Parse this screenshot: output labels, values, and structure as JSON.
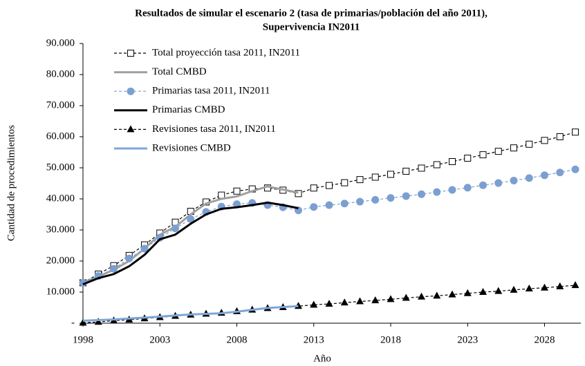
{
  "chart_data": {
    "type": "line",
    "title": [
      "Resultados de simular el escenario 2 (tasa de primarias/población del año 2011),",
      "Supervivencia IN2011"
    ],
    "x_label": "Año",
    "y_label": "Cantidad de procedimientos",
    "x": [
      1998,
      1999,
      2000,
      2001,
      2002,
      2003,
      2004,
      2005,
      2006,
      2007,
      2008,
      2009,
      2010,
      2011,
      2012,
      2013,
      2014,
      2015,
      2016,
      2017,
      2018,
      2019,
      2020,
      2021,
      2022,
      2023,
      2024,
      2025,
      2026,
      2027,
      2028,
      2029,
      2030
    ],
    "xlim": [
      1998,
      2030
    ],
    "xticks": [
      1998,
      2003,
      2008,
      2013,
      2018,
      2023,
      2028
    ],
    "ylim": [
      0,
      90000
    ],
    "yticks": [
      {
        "value": 0,
        "label": "-"
      },
      {
        "value": 10000,
        "label": "10.000"
      },
      {
        "value": 20000,
        "label": "20.000"
      },
      {
        "value": 30000,
        "label": "30.000"
      },
      {
        "value": 40000,
        "label": "40.000"
      },
      {
        "value": 50000,
        "label": "50.000"
      },
      {
        "value": 60000,
        "label": "60.000"
      },
      {
        "value": 70000,
        "label": "70.000"
      },
      {
        "value": 80000,
        "label": "80.000"
      },
      {
        "value": 90000,
        "label": "90.000"
      }
    ],
    "legend": "upper left",
    "series": [
      {
        "name": "Total proyección tasa 2011, IN2011",
        "color": "#000000",
        "dashed": true,
        "marker": "square",
        "values": [
          13000,
          15800,
          18500,
          21800,
          25200,
          29000,
          32500,
          36000,
          39000,
          41200,
          42500,
          43200,
          43500,
          42800,
          41700,
          43500,
          44300,
          45200,
          46200,
          47000,
          47900,
          48900,
          49900,
          51000,
          52000,
          53100,
          54200,
          55300,
          56400,
          57600,
          58800,
          60000,
          61500
        ]
      },
      {
        "name": "Total CMBD",
        "color": "#a0a0a0",
        "dashed": false,
        "marker": "none",
        "values": [
          13000,
          15000,
          17200,
          20000,
          24000,
          28500,
          31000,
          35000,
          38500,
          40000,
          40800,
          42500,
          44000,
          43000,
          42000,
          null,
          null,
          null,
          null,
          null,
          null,
          null,
          null,
          null,
          null,
          null,
          null,
          null,
          null,
          null,
          null,
          null,
          null
        ]
      },
      {
        "name": "Primarias tasa 2011, IN2011",
        "color": "#7b9fd1",
        "dashed": true,
        "marker": "circle",
        "values": [
          13000,
          15200,
          17500,
          20800,
          24000,
          27500,
          30500,
          33500,
          35800,
          37500,
          38300,
          38700,
          38000,
          37300,
          36300,
          37400,
          38000,
          38500,
          39100,
          39700,
          40300,
          40900,
          41500,
          42200,
          42900,
          43600,
          44400,
          45100,
          45900,
          46700,
          47600,
          48500,
          49500
        ]
      },
      {
        "name": "Primarias CMBD",
        "color": "#000000",
        "dashed": false,
        "marker": "none",
        "values": [
          12500,
          14500,
          15800,
          18300,
          22000,
          27000,
          28500,
          32000,
          35000,
          36800,
          37300,
          38000,
          38800,
          38000,
          37000,
          null,
          null,
          null,
          null,
          null,
          null,
          null,
          null,
          null,
          null,
          null,
          null,
          null,
          null,
          null,
          null,
          null,
          null
        ]
      },
      {
        "name": "Revisiones tasa 2011, IN2011",
        "color": "#000000",
        "dashed": true,
        "marker": "triangle",
        "values": [
          100,
          400,
          800,
          1100,
          1500,
          1900,
          2300,
          2700,
          3000,
          3300,
          3800,
          4300,
          4800,
          5100,
          5500,
          5900,
          6200,
          6600,
          7000,
          7300,
          7700,
          8100,
          8500,
          8800,
          9200,
          9600,
          10000,
          10300,
          10700,
          11100,
          11400,
          11800,
          12200
        ]
      },
      {
        "name": "Revisiones CMBD",
        "color": "#7fa6d6",
        "dashed": false,
        "marker": "none",
        "values": [
          800,
          1000,
          1200,
          1500,
          1800,
          2100,
          2500,
          2800,
          3000,
          3200,
          3700,
          4300,
          4900,
          5200,
          5500,
          null,
          null,
          null,
          null,
          null,
          null,
          null,
          null,
          null,
          null,
          null,
          null,
          null,
          null,
          null,
          null,
          null,
          null
        ]
      }
    ]
  }
}
